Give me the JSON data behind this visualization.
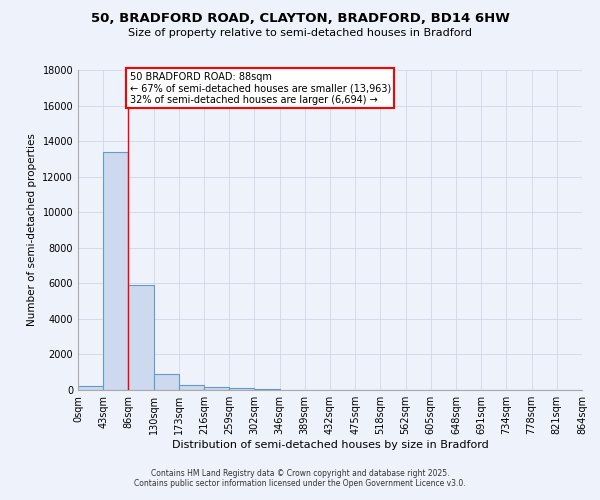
{
  "title_line1": "50, BRADFORD ROAD, CLAYTON, BRADFORD, BD14 6HW",
  "title_line2": "Size of property relative to semi-detached houses in Bradford",
  "xlabel": "Distribution of semi-detached houses by size in Bradford",
  "ylabel": "Number of semi-detached properties",
  "bar_color": "#ccd9ee",
  "bar_edge_color": "#6699cc",
  "bar_edge_width": 0.8,
  "background_color": "#eef2fb",
  "grid_color": "#d0d8e8",
  "annotation_text": "50 BRADFORD ROAD: 88sqm\n← 67% of semi-detached houses are smaller (13,963)\n32% of semi-detached houses are larger (6,694) →",
  "red_line_x": 86,
  "bin_width": 43,
  "num_bins": 20,
  "bin_labels": [
    "0sqm",
    "43sqm",
    "86sqm",
    "130sqm",
    "173sqm",
    "216sqm",
    "259sqm",
    "302sqm",
    "346sqm",
    "389sqm",
    "432sqm",
    "475sqm",
    "518sqm",
    "562sqm",
    "605sqm",
    "648sqm",
    "691sqm",
    "734sqm",
    "778sqm",
    "821sqm",
    "864sqm"
  ],
  "bar_heights": [
    200,
    13400,
    5900,
    900,
    300,
    150,
    100,
    50,
    0,
    0,
    0,
    0,
    0,
    0,
    0,
    0,
    0,
    0,
    0,
    0
  ],
  "ylim": [
    0,
    18000
  ],
  "yticks": [
    0,
    2000,
    4000,
    6000,
    8000,
    10000,
    12000,
    14000,
    16000,
    18000
  ],
  "footnote1": "Contains HM Land Registry data © Crown copyright and database right 2025.",
  "footnote2": "Contains public sector information licensed under the Open Government Licence v3.0."
}
